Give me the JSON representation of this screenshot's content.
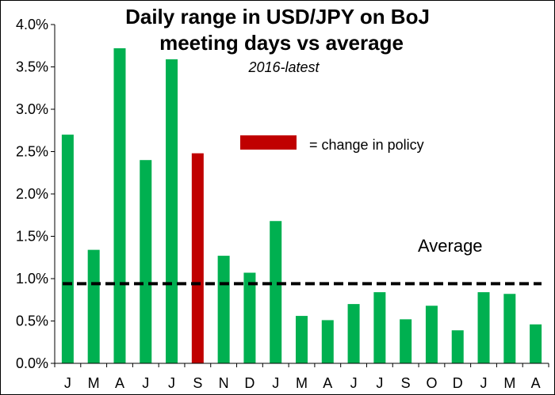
{
  "chart_data": {
    "type": "bar",
    "title_line1": "Daily range in USD/JPY on BoJ",
    "title_line2": "meeting days vs average",
    "subtitle": "2016-latest",
    "categories": [
      "J",
      "M",
      "A",
      "J",
      "J",
      "S",
      "N",
      "D",
      "J",
      "M",
      "A",
      "J",
      "J",
      "S",
      "O",
      "D",
      "J",
      "M",
      "A"
    ],
    "values": [
      2.7,
      1.34,
      3.72,
      2.4,
      3.59,
      2.48,
      1.27,
      1.07,
      1.68,
      0.56,
      0.51,
      0.7,
      0.84,
      0.52,
      0.68,
      0.39,
      0.84,
      0.82,
      0.46
    ],
    "policy_change_index": 5,
    "average": 0.94,
    "ylim": [
      0,
      4
    ],
    "yticks": [
      0,
      0.5,
      1.0,
      1.5,
      2.0,
      2.5,
      3.0,
      3.5,
      4.0
    ],
    "ytick_labels": [
      "0.0%",
      "0.5%",
      "1.0%",
      "1.5%",
      "2.0%",
      "2.5%",
      "3.0%",
      "3.5%",
      "4.0%"
    ],
    "colors": {
      "bar": "#00b050",
      "policy_bar": "#c00000",
      "average_line": "#000000"
    },
    "legend_label": "= change in policy",
    "average_label": "Average"
  }
}
